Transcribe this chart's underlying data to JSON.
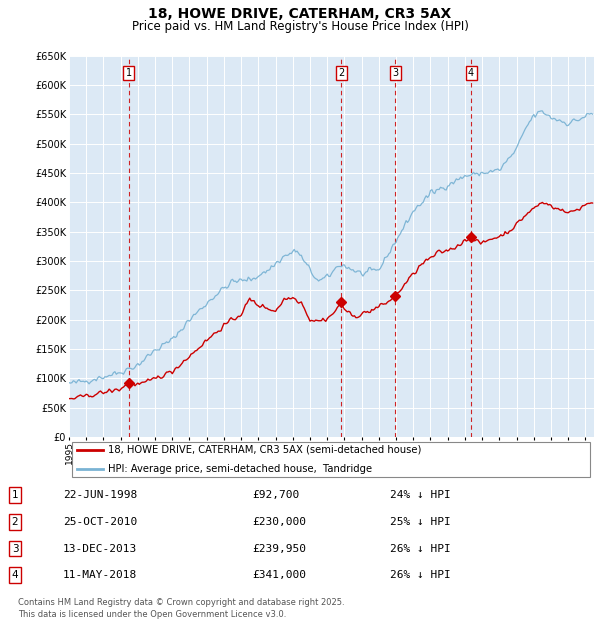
{
  "title": "18, HOWE DRIVE, CATERHAM, CR3 5AX",
  "subtitle": "Price paid vs. HM Land Registry's House Price Index (HPI)",
  "plot_bg_color": "#dce9f5",
  "hpi_color": "#7ab3d4",
  "price_color": "#cc0000",
  "ylim": [
    0,
    650000
  ],
  "yticks": [
    0,
    50000,
    100000,
    150000,
    200000,
    250000,
    300000,
    350000,
    400000,
    450000,
    500000,
    550000,
    600000,
    650000
  ],
  "xlim_start": 1995.25,
  "xlim_end": 2025.5,
  "sales": [
    {
      "num": 1,
      "date_label": "22-JUN-1998",
      "x": 1998.47,
      "price": 92700,
      "pct": "24%",
      "dir": "↓"
    },
    {
      "num": 2,
      "date_label": "25-OCT-2010",
      "x": 2010.81,
      "price": 230000,
      "pct": "25%",
      "dir": "↓"
    },
    {
      "num": 3,
      "date_label": "13-DEC-2013",
      "x": 2013.94,
      "price": 239950,
      "pct": "26%",
      "dir": "↓"
    },
    {
      "num": 4,
      "date_label": "11-MAY-2018",
      "x": 2018.36,
      "price": 341000,
      "pct": "26%",
      "dir": "↓"
    }
  ],
  "legend_price_label": "18, HOWE DRIVE, CATERHAM, CR3 5AX (semi-detached house)",
  "legend_hpi_label": "HPI: Average price, semi-detached house,  Tandridge",
  "footer": "Contains HM Land Registry data © Crown copyright and database right 2025.\nThis data is licensed under the Open Government Licence v3.0."
}
